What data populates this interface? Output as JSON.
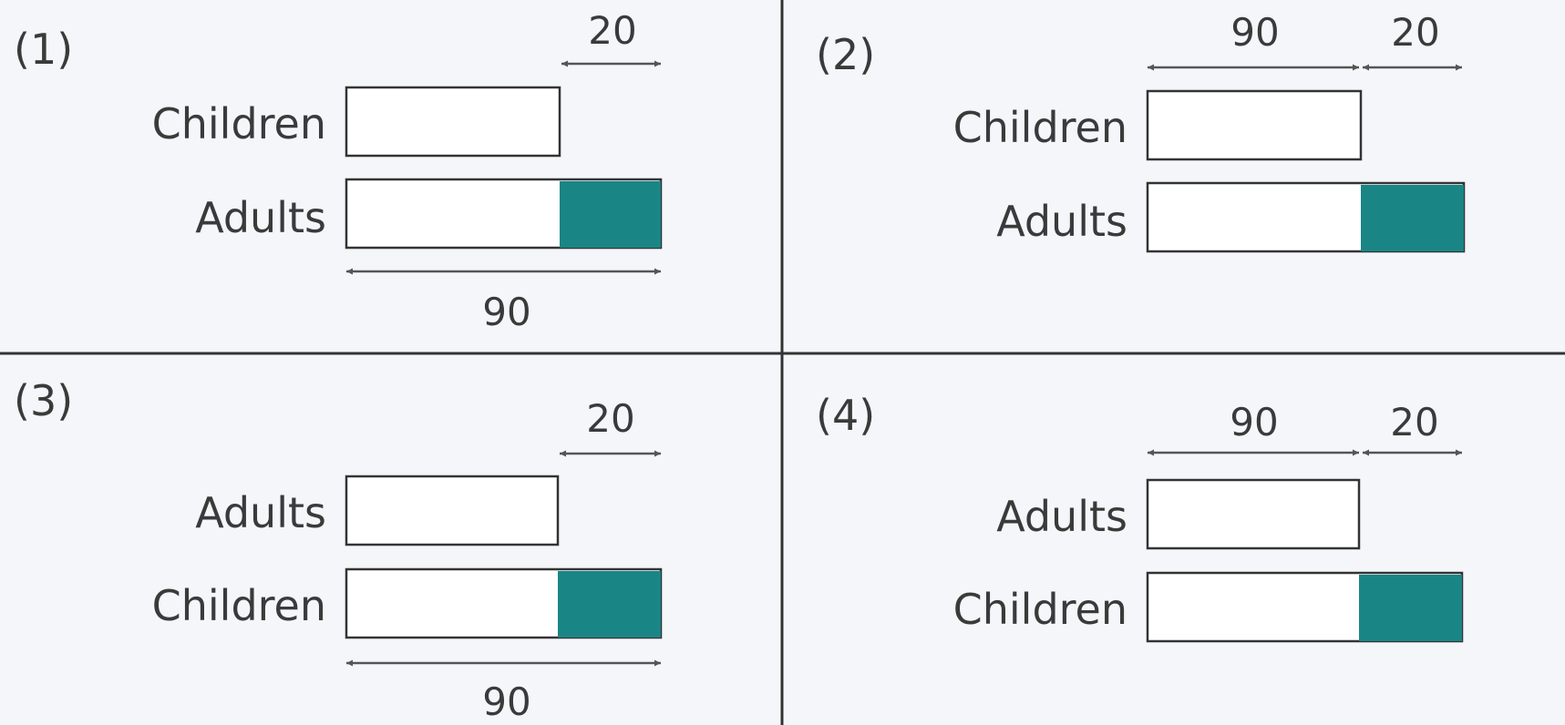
{
  "colors": {
    "shaded": "#1a8585"
  },
  "icons": {
    "arrow": "double-headed-arrow"
  },
  "panels": [
    {
      "label": "(1)",
      "top_row": "Children",
      "bottom_row": "Adults",
      "long_value": "90",
      "short_value": "20"
    },
    {
      "label": "(2)",
      "top_row": "Children",
      "bottom_row": "Adults",
      "long_value": "90",
      "short_value": "20"
    },
    {
      "label": "(3)",
      "top_row": "Adults",
      "bottom_row": "Children",
      "long_value": "90",
      "short_value": "20"
    },
    {
      "label": "(4)",
      "top_row": "Adults",
      "bottom_row": "Children",
      "long_value": "90",
      "short_value": "20"
    }
  ]
}
